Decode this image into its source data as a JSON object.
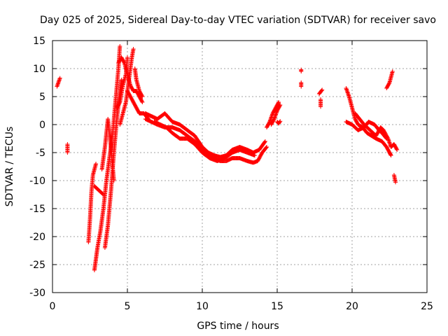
{
  "chart_data": {
    "type": "scatter",
    "title": "Day 025 of 2025, Sidereal Day-to-day VTEC variation (SDTVAR) for receiver savo",
    "xlabel": "GPS time / hours",
    "ylabel": "SDTVAR / TECUs",
    "xlim": [
      0,
      25
    ],
    "ylim": [
      -30,
      15
    ],
    "xticks": [
      0,
      5,
      10,
      15,
      20,
      25
    ],
    "yticks": [
      -30,
      -25,
      -20,
      -15,
      -10,
      -5,
      0,
      5,
      10,
      15
    ],
    "grid": true,
    "marker": "+",
    "color": "#ff0000",
    "series": [
      {
        "name": "SDTVAR",
        "x": [],
        "y": []
      }
    ],
    "segments": [
      [
        [
          0.3,
          6.8
        ],
        [
          0.5,
          8.3
        ]
      ],
      [
        [
          1.0,
          -5.0
        ],
        [
          1.0,
          -3.5
        ]
      ],
      [
        [
          2.4,
          -21.0
        ],
        [
          2.5,
          -17
        ],
        [
          2.6,
          -12
        ],
        [
          2.7,
          -9
        ],
        [
          2.9,
          -7
        ]
      ],
      [
        [
          2.8,
          -26.0
        ],
        [
          2.9,
          -24
        ],
        [
          3.0,
          -22
        ],
        [
          3.2,
          -19
        ],
        [
          3.4,
          -15
        ],
        [
          3.6,
          -10
        ],
        [
          3.8,
          -6
        ],
        [
          4.0,
          -2
        ],
        [
          4.2,
          4
        ],
        [
          4.4,
          10
        ],
        [
          4.5,
          14
        ]
      ],
      [
        [
          2.8,
          -11.0
        ],
        [
          3.0,
          -11.5
        ],
        [
          3.2,
          -12
        ],
        [
          3.4,
          -12.5
        ]
      ],
      [
        [
          3.3,
          -8
        ],
        [
          3.5,
          -4
        ],
        [
          3.7,
          1
        ],
        [
          3.9,
          -4
        ],
        [
          4.1,
          -10
        ]
      ],
      [
        [
          3.5,
          -22
        ],
        [
          3.7,
          -18
        ],
        [
          3.9,
          -12
        ],
        [
          4.1,
          -5
        ],
        [
          4.3,
          1
        ],
        [
          4.5,
          6
        ],
        [
          4.6,
          8
        ]
      ],
      [
        [
          4.3,
          3
        ],
        [
          4.5,
          4
        ],
        [
          4.7,
          7
        ],
        [
          4.9,
          9
        ],
        [
          5.0,
          12
        ]
      ],
      [
        [
          4.5,
          0
        ],
        [
          4.7,
          2
        ],
        [
          4.9,
          4
        ],
        [
          5.1,
          8
        ],
        [
          5.3,
          12
        ],
        [
          5.4,
          13.5
        ]
      ],
      [
        [
          4.4,
          11
        ],
        [
          4.6,
          12
        ],
        [
          4.8,
          11
        ],
        [
          5.0,
          9
        ],
        [
          5.2,
          7
        ],
        [
          5.4,
          6
        ],
        [
          5.6,
          6
        ],
        [
          5.8,
          5
        ],
        [
          6.0,
          4
        ]
      ],
      [
        [
          5.0,
          6
        ],
        [
          5.2,
          5
        ],
        [
          5.4,
          4
        ],
        [
          5.6,
          3
        ],
        [
          5.8,
          2
        ],
        [
          6.1,
          2
        ],
        [
          6.4,
          1
        ]
      ],
      [
        [
          5.5,
          10
        ],
        [
          5.6,
          8
        ],
        [
          5.8,
          6
        ],
        [
          6.0,
          5
        ]
      ],
      [
        [
          6.2,
          1
        ],
        [
          6.6,
          0.5
        ],
        [
          7.0,
          0
        ],
        [
          7.5,
          -0.5
        ],
        [
          8.0,
          -0.5
        ],
        [
          8.5,
          -1
        ],
        [
          9.0,
          -2
        ],
        [
          9.5,
          -3
        ],
        [
          10.0,
          -4.5
        ],
        [
          10.4,
          -5.5
        ],
        [
          10.8,
          -6
        ],
        [
          11.2,
          -6.5
        ],
        [
          11.6,
          -6.5
        ],
        [
          12.0,
          -6
        ],
        [
          12.5,
          -6
        ],
        [
          13.0,
          -6.5
        ],
        [
          13.4,
          -6.8
        ],
        [
          13.7,
          -6.5
        ],
        [
          14.0,
          -5
        ],
        [
          14.3,
          -4
        ]
      ],
      [
        [
          6.2,
          2
        ],
        [
          6.6,
          1.5
        ],
        [
          7.0,
          1
        ],
        [
          7.5,
          2
        ],
        [
          8.0,
          0.5
        ],
        [
          8.5,
          0
        ],
        [
          9.0,
          -1
        ],
        [
          9.5,
          -2
        ],
        [
          10.0,
          -4
        ],
        [
          10.4,
          -5
        ],
        [
          10.8,
          -5.5
        ],
        [
          11.2,
          -5.8
        ],
        [
          11.6,
          -5.5
        ],
        [
          12.0,
          -4.5
        ],
        [
          12.5,
          -4.0
        ],
        [
          13.0,
          -4.5
        ],
        [
          13.4,
          -5
        ],
        [
          13.8,
          -4.5
        ],
        [
          14.2,
          -3
        ]
      ],
      [
        [
          6.8,
          0.5
        ],
        [
          7.2,
          0
        ],
        [
          7.6,
          -0.5
        ],
        [
          8.0,
          -1.5
        ],
        [
          8.5,
          -2.5
        ],
        [
          9.0,
          -2.5
        ],
        [
          9.5,
          -3.5
        ],
        [
          10.0,
          -5
        ],
        [
          10.5,
          -6
        ],
        [
          11.0,
          -6.5
        ],
        [
          11.5,
          -6
        ],
        [
          12.0,
          -5
        ],
        [
          12.5,
          -4.5
        ],
        [
          13.0,
          -5
        ],
        [
          13.5,
          -5.5
        ]
      ],
      [
        [
          14.3,
          -0.5
        ],
        [
          14.5,
          0.5
        ],
        [
          14.7,
          2
        ],
        [
          14.9,
          3
        ],
        [
          15.1,
          4
        ]
      ],
      [
        [
          14.6,
          0
        ],
        [
          14.8,
          1
        ],
        [
          15.0,
          2.5
        ],
        [
          15.2,
          3.5
        ]
      ],
      [
        [
          15.0,
          0.5
        ],
        [
          15.1,
          0.2
        ],
        [
          15.2,
          0.6
        ]
      ],
      [
        [
          16.6,
          6.8
        ],
        [
          16.6,
          7.5
        ]
      ],
      [
        [
          16.6,
          9.5
        ],
        [
          16.6,
          9.8
        ]
      ],
      [
        [
          17.9,
          3.2
        ],
        [
          17.9,
          4.5
        ]
      ],
      [
        [
          17.8,
          5.5
        ],
        [
          18.0,
          6.2
        ]
      ],
      [
        [
          19.6,
          6.5
        ],
        [
          19.8,
          5
        ],
        [
          20.0,
          3
        ],
        [
          20.2,
          1
        ],
        [
          20.4,
          0
        ],
        [
          20.7,
          -0.5
        ],
        [
          21.0,
          -1.5
        ],
        [
          21.3,
          -2
        ],
        [
          21.6,
          -2.5
        ],
        [
          22.0,
          -3
        ],
        [
          22.3,
          -4
        ],
        [
          22.5,
          -5
        ],
        [
          22.6,
          -5.5
        ]
      ],
      [
        [
          19.6,
          0.5
        ],
        [
          20.0,
          0
        ],
        [
          20.4,
          -1
        ],
        [
          20.8,
          -0.5
        ],
        [
          21.1,
          0.5
        ],
        [
          21.5,
          0
        ],
        [
          21.8,
          -1
        ],
        [
          22.0,
          -1.5
        ],
        [
          22.3,
          -2.5
        ]
      ],
      [
        [
          20.2,
          2
        ],
        [
          20.5,
          1
        ],
        [
          20.8,
          0
        ],
        [
          21.2,
          -1
        ],
        [
          21.6,
          -2
        ],
        [
          21.9,
          -0.5
        ],
        [
          22.1,
          -1
        ],
        [
          22.4,
          -2.5
        ],
        [
          22.6,
          -4
        ],
        [
          22.8,
          -3.5
        ],
        [
          23.0,
          -4.5
        ]
      ],
      [
        [
          22.3,
          6.5
        ],
        [
          22.5,
          7.5
        ],
        [
          22.7,
          9.5
        ]
      ],
      [
        [
          22.8,
          -9
        ],
        [
          22.9,
          -10.3
        ]
      ]
    ]
  }
}
